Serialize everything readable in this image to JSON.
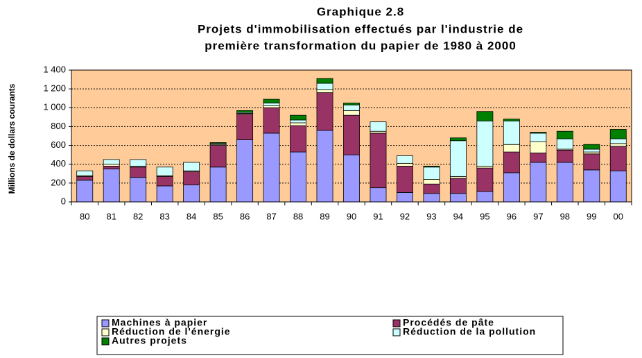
{
  "chart_data": {
    "type": "stacked_bar",
    "title": "Graphique 2.8",
    "subtitle": [
      "Projets d'immobilisation effectués par l'industrie de",
      "première transformation du papier de 1980 à 2000"
    ],
    "y_label": "Millions de dollars courants",
    "categories": [
      "80",
      "81",
      "82",
      "83",
      "84",
      "85",
      "86",
      "87",
      "88",
      "89",
      "90",
      "91",
      "92",
      "93",
      "94",
      "95",
      "96",
      "97",
      "98",
      "99",
      "00"
    ],
    "series": [
      {
        "name": "Machines à papier",
        "color": "#9999ff",
        "values": [
          230,
          350,
          260,
          170,
          180,
          370,
          660,
          730,
          530,
          760,
          500,
          150,
          100,
          90,
          90,
          110,
          310,
          420,
          420,
          340,
          330
        ]
      },
      {
        "name": "Procédés de pâte",
        "color": "#993366",
        "values": [
          40,
          30,
          110,
          100,
          140,
          230,
          270,
          270,
          280,
          400,
          420,
          580,
          280,
          100,
          160,
          250,
          220,
          100,
          130,
          170,
          260
        ]
      },
      {
        "name": "Réduction de l'énergie",
        "color": "#ffffcc",
        "values": [
          10,
          20,
          10,
          10,
          10,
          10,
          10,
          20,
          30,
          30,
          50,
          20,
          30,
          50,
          20,
          20,
          80,
          120,
          10,
          20,
          30
        ]
      },
      {
        "name": "Réduction de la pollution",
        "color": "#ccffff",
        "values": [
          50,
          50,
          70,
          90,
          90,
          10,
          10,
          30,
          30,
          70,
          60,
          100,
          80,
          130,
          380,
          480,
          250,
          90,
          110,
          30,
          50
        ]
      },
      {
        "name": "Autres projets",
        "color": "#008000",
        "values": [
          0,
          0,
          0,
          0,
          0,
          10,
          20,
          40,
          50,
          50,
          20,
          0,
          0,
          10,
          30,
          100,
          20,
          10,
          80,
          50,
          100
        ]
      }
    ],
    "ylim": [
      0,
      1400
    ],
    "yticks": [
      0,
      200,
      400,
      600,
      800,
      {
        "value": 1000,
        "label": "1 000"
      },
      {
        "value": 1200,
        "label": "1 200"
      },
      {
        "value": 1400,
        "label": "1 400"
      }
    ],
    "grid": true,
    "legend": "bottom"
  }
}
